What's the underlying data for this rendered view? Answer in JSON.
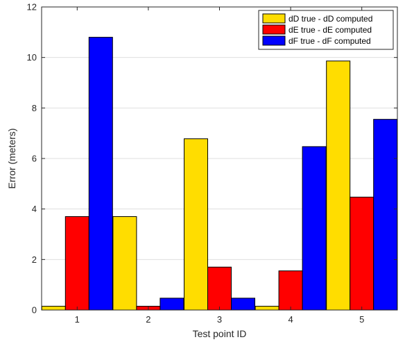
{
  "chart_data": {
    "type": "bar",
    "title": "",
    "xlabel": "Test point ID",
    "ylabel": "Error (meters)",
    "categories": [
      "1",
      "2",
      "3",
      "4",
      "5"
    ],
    "ylim": [
      0,
      12
    ],
    "yticks": [
      0,
      2,
      4,
      6,
      8,
      10,
      12
    ],
    "grid": "horizontal",
    "legend_position": "top-right",
    "series": [
      {
        "name": "dD true - dD computed",
        "color": "#FFDD00",
        "values": [
          0.15,
          3.7,
          6.78,
          0.15,
          9.86
        ]
      },
      {
        "name": "dE true - dE computed",
        "color": "#FF0000",
        "values": [
          3.7,
          0.15,
          1.7,
          1.55,
          4.47
        ]
      },
      {
        "name": "dF true - dF computed",
        "color": "#0000FF",
        "values": [
          10.8,
          0.47,
          0.47,
          6.47,
          7.55
        ]
      }
    ]
  }
}
